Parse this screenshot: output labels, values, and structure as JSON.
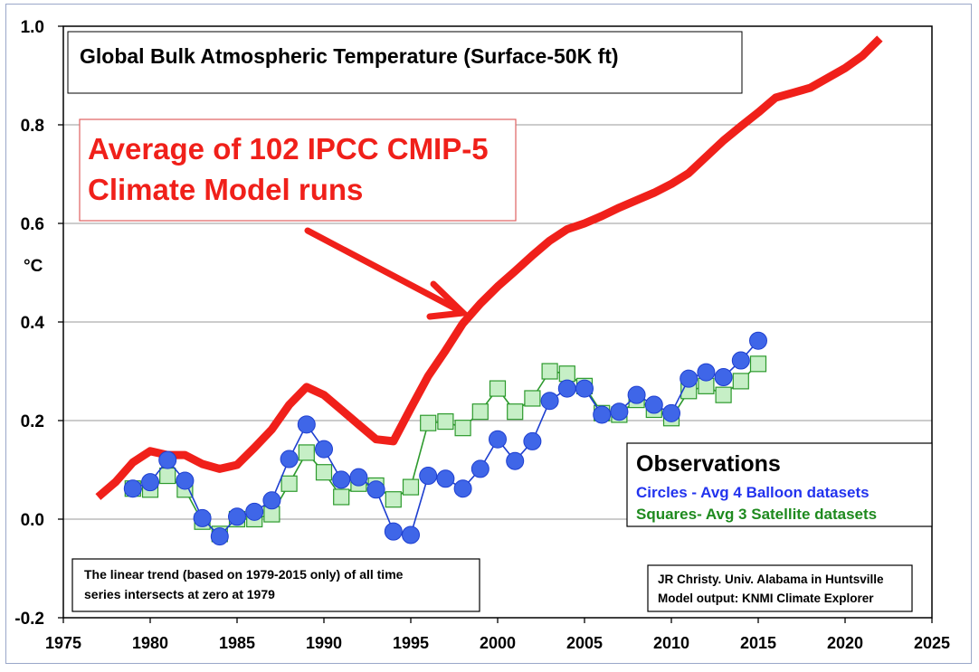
{
  "chart_data": {
    "type": "line",
    "title": "Global Bulk Atmospheric Temperature (Surface-50K ft)",
    "ylabel": "°C",
    "xlim": [
      1975,
      2025
    ],
    "ylim": [
      -0.2,
      1.0
    ],
    "x_ticks": [
      "1975",
      "1980",
      "1985",
      "1990",
      "1995",
      "2000",
      "2005",
      "2010",
      "2015",
      "2020",
      "2025"
    ],
    "y_ticks": [
      "-0.2",
      "0.0",
      "0.2",
      "0.4",
      "0.6",
      "0.8",
      "1.0"
    ],
    "grid": "horizontal",
    "annotation": {
      "line1": "Average of 102 IPCC CMIP-5",
      "line2": "Climate Model runs"
    },
    "legend": {
      "title": "Observations",
      "placement": "lower-right",
      "circles": "Circles - Avg 4 Balloon datasets",
      "squares": "Squares- Avg 3 Satellite datasets"
    },
    "note": {
      "line1": "The linear trend (based on 1979-2015 only) of all time",
      "line2": "series intersects at zero at 1979"
    },
    "credit": {
      "line1": "JR Christy. Univ. Alabama in Huntsville",
      "line2": "Model output: KNMI Climate Explorer"
    },
    "colors": {
      "model": "#f0201a",
      "balloon_fill": "#3f66e8",
      "balloon_line": "#1e3fd0",
      "satellite_fill": "#c6efc6",
      "satellite_line": "#2d9a2d",
      "grid": "#9a9a9a"
    },
    "series": [
      {
        "style": "model",
        "x": [
          1977,
          1978,
          1979,
          1980,
          1981,
          1982,
          1983,
          1984,
          1985,
          1986,
          1987,
          1988,
          1989,
          1990,
          1991,
          1992,
          1993,
          1994,
          1995,
          1996,
          1997,
          1998,
          1999,
          2000,
          2001,
          2002,
          2003,
          2004,
          2005,
          2006,
          2007,
          2008,
          2009,
          2010,
          2011,
          2012,
          2013,
          2014,
          2015,
          2016,
          2017,
          2018,
          2019,
          2020,
          2021,
          2022
        ],
        "values": [
          0.045,
          0.075,
          0.115,
          0.138,
          0.13,
          0.13,
          0.112,
          0.102,
          0.11,
          0.145,
          0.182,
          0.232,
          0.268,
          0.252,
          0.222,
          0.192,
          0.162,
          0.158,
          0.225,
          0.29,
          0.342,
          0.397,
          0.437,
          0.472,
          0.503,
          0.535,
          0.565,
          0.588,
          0.6,
          0.615,
          0.632,
          0.647,
          0.662,
          0.68,
          0.702,
          0.735,
          0.768,
          0.797,
          0.825,
          0.855,
          0.865,
          0.875,
          0.895,
          0.915,
          0.94,
          0.975
        ]
      },
      {
        "style": "satellite",
        "x": [
          1979,
          1980,
          1981,
          1982,
          1983,
          1984,
          1985,
          1986,
          1987,
          1988,
          1989,
          1990,
          1991,
          1992,
          1993,
          1994,
          1995,
          1996,
          1997,
          1998,
          1999,
          2000,
          2001,
          2002,
          2003,
          2004,
          2005,
          2006,
          2007,
          2008,
          2009,
          2010,
          2011,
          2012,
          2013,
          2014,
          2015
        ],
        "values": [
          0.062,
          0.06,
          0.088,
          0.06,
          -0.005,
          -0.03,
          0.0,
          0.0,
          0.01,
          0.072,
          0.135,
          0.095,
          0.045,
          0.072,
          0.068,
          0.04,
          0.065,
          0.195,
          0.198,
          0.185,
          0.218,
          0.265,
          0.218,
          0.245,
          0.3,
          0.295,
          0.27,
          0.215,
          0.212,
          0.242,
          0.222,
          0.205,
          0.26,
          0.27,
          0.252,
          0.28,
          0.315
        ]
      },
      {
        "style": "balloon",
        "x": [
          1979,
          1980,
          1981,
          1982,
          1983,
          1984,
          1985,
          1986,
          1987,
          1988,
          1989,
          1990,
          1991,
          1992,
          1993,
          1994,
          1995,
          1996,
          1997,
          1998,
          1999,
          2000,
          2001,
          2002,
          2003,
          2004,
          2005,
          2006,
          2007,
          2008,
          2009,
          2010,
          2011,
          2012,
          2013,
          2014,
          2015
        ],
        "values": [
          0.062,
          0.075,
          0.12,
          0.078,
          0.002,
          -0.035,
          0.005,
          0.015,
          0.038,
          0.122,
          0.192,
          0.142,
          0.08,
          0.085,
          0.06,
          -0.025,
          -0.032,
          0.088,
          0.082,
          0.062,
          0.102,
          0.162,
          0.118,
          0.158,
          0.24,
          0.265,
          0.265,
          0.212,
          0.218,
          0.252,
          0.232,
          0.215,
          0.285,
          0.298,
          0.288,
          0.322,
          0.362
        ]
      }
    ]
  }
}
